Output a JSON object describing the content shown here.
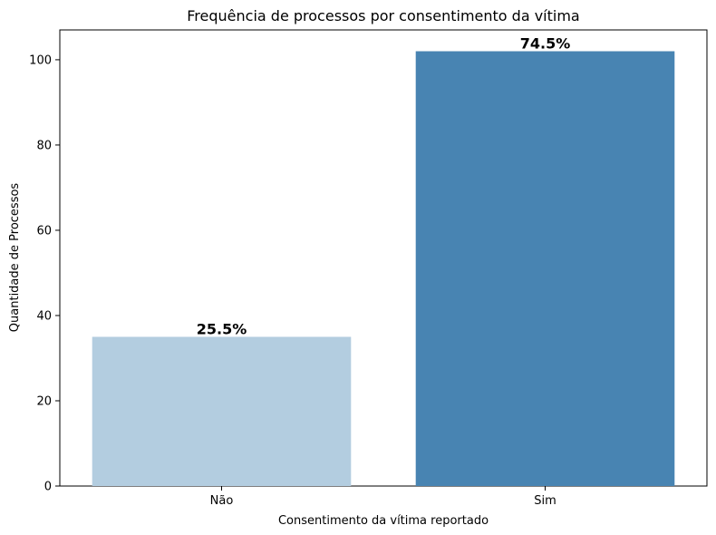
{
  "chart_data": {
    "type": "bar",
    "title": "Frequência de processos por consentimento da vítima",
    "xlabel": "Consentimento da vítima reportado",
    "ylabel": "Quantidade de Processos",
    "categories": [
      "Não",
      "Sim"
    ],
    "values": [
      35,
      102
    ],
    "data_labels": [
      "25.5%",
      "74.5%"
    ],
    "colors": [
      "#b3cde0",
      "#4884b2"
    ],
    "ylim": [
      0,
      107
    ],
    "yticks": [
      0,
      20,
      40,
      60,
      80,
      100
    ],
    "grid": false,
    "legend": "none"
  }
}
